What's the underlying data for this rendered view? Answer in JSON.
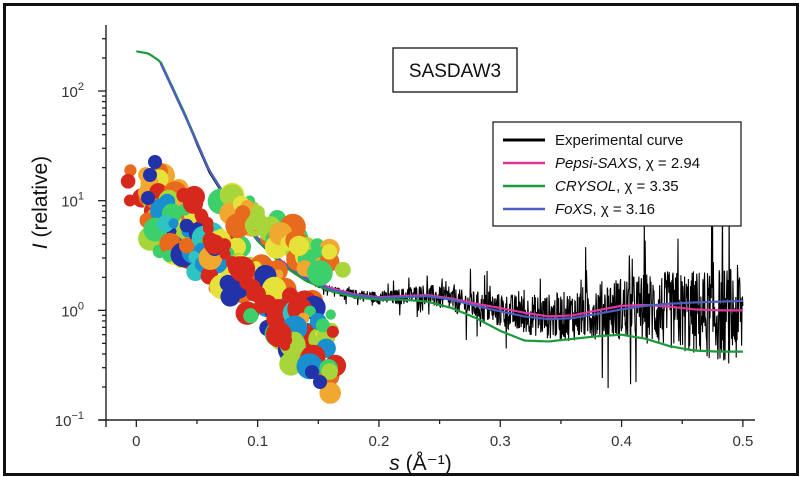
{
  "chart_data": {
    "type": "line",
    "title": "SASDAW3",
    "xlabel": {
      "var": "s",
      "unit": "(Å⁻¹)"
    },
    "ylabel": {
      "var": "I",
      "unit": "(relative)"
    },
    "x_scale": "linear",
    "y_scale": "log",
    "xlim": [
      -0.025,
      0.51
    ],
    "ylim": [
      0.1,
      400
    ],
    "grid": false,
    "legend_position": "top-right",
    "x_ticks": [
      "0",
      "0.1",
      "0.2",
      "0.3",
      "0.4",
      "0.5"
    ],
    "x_tick_values": [
      0,
      0.1,
      0.2,
      0.3,
      0.4,
      0.5
    ],
    "y_ticks": [
      {
        "value": 0.1,
        "base": "10",
        "exp": "−1"
      },
      {
        "value": 1,
        "base": "10",
        "exp": "0"
      },
      {
        "value": 10,
        "base": "10",
        "exp": "1"
      },
      {
        "value": 100,
        "base": "10",
        "exp": "2"
      }
    ],
    "series": [
      {
        "name": "Experimental curve",
        "color": "#000000",
        "noisy": true,
        "x": [
          0.02,
          0.03,
          0.04,
          0.05,
          0.06,
          0.07,
          0.08,
          0.09,
          0.1,
          0.11,
          0.12,
          0.13,
          0.14,
          0.15,
          0.16,
          0.17,
          0.18,
          0.19,
          0.2,
          0.21,
          0.22,
          0.23,
          0.24,
          0.25,
          0.26,
          0.27,
          0.28,
          0.29,
          0.3,
          0.31,
          0.32,
          0.33,
          0.34,
          0.35,
          0.36,
          0.37,
          0.38,
          0.39,
          0.4,
          0.41,
          0.42,
          0.43,
          0.44,
          0.45,
          0.46,
          0.47,
          0.48,
          0.49,
          0.5
        ],
        "y": [
          180,
          110,
          60,
          32,
          18,
          12,
          8.5,
          6.0,
          4.5,
          3.3,
          2.7,
          2.3,
          2.0,
          1.7,
          1.55,
          1.45,
          1.4,
          1.35,
          1.3,
          1.3,
          1.35,
          1.4,
          1.4,
          1.3,
          1.25,
          1.15,
          1.1,
          1.05,
          1.0,
          0.95,
          0.92,
          0.9,
          0.88,
          0.88,
          0.9,
          0.95,
          1.0,
          1.02,
          1.05,
          1.05,
          1.05,
          1.02,
          1.0,
          0.97,
          0.95,
          0.93,
          0.92,
          0.9,
          0.9
        ],
        "noise_start": [
          0.1,
          0.02
        ],
        "noise_amp": [
          0.4,
          1.8
        ]
      },
      {
        "name": "Pepsi-SAXS",
        "chi_label": "χ = 2.94",
        "color": "#e0359b",
        "x": [
          0.02,
          0.04,
          0.06,
          0.08,
          0.1,
          0.12,
          0.14,
          0.16,
          0.18,
          0.2,
          0.22,
          0.24,
          0.26,
          0.28,
          0.3,
          0.32,
          0.34,
          0.36,
          0.38,
          0.4,
          0.42,
          0.44,
          0.46,
          0.48,
          0.5
        ],
        "y": [
          180,
          60,
          19,
          8.5,
          4.6,
          2.8,
          2.0,
          1.6,
          1.4,
          1.32,
          1.35,
          1.38,
          1.28,
          1.15,
          1.05,
          0.95,
          0.88,
          0.9,
          1.0,
          1.1,
          1.12,
          1.08,
          1.02,
          1.0,
          1.0
        ]
      },
      {
        "name": "CRYSOL",
        "chi_label": "χ = 3.35",
        "color": "#1a9a3a",
        "x": [
          0.0,
          0.01,
          0.02,
          0.04,
          0.06,
          0.08,
          0.1,
          0.12,
          0.14,
          0.16,
          0.18,
          0.2,
          0.22,
          0.24,
          0.26,
          0.28,
          0.3,
          0.32,
          0.34,
          0.36,
          0.38,
          0.4,
          0.42,
          0.44,
          0.46,
          0.48,
          0.5
        ],
        "y": [
          230,
          220,
          185,
          62,
          19,
          8.2,
          4.3,
          2.6,
          1.85,
          1.5,
          1.32,
          1.25,
          1.25,
          1.2,
          1.05,
          0.85,
          0.65,
          0.53,
          0.52,
          0.55,
          0.58,
          0.6,
          0.55,
          0.47,
          0.43,
          0.42,
          0.42
        ]
      },
      {
        "name": "FoXS",
        "chi_label": "χ = 3.16",
        "color": "#4a5fc0",
        "x": [
          0.02,
          0.04,
          0.06,
          0.08,
          0.1,
          0.12,
          0.14,
          0.16,
          0.18,
          0.2,
          0.22,
          0.24,
          0.26,
          0.28,
          0.3,
          0.32,
          0.34,
          0.36,
          0.38,
          0.4,
          0.42,
          0.44,
          0.46,
          0.48,
          0.5
        ],
        "y": [
          180,
          60,
          19,
          8.5,
          4.5,
          2.75,
          1.95,
          1.55,
          1.38,
          1.3,
          1.32,
          1.35,
          1.25,
          1.1,
          0.98,
          0.88,
          0.83,
          0.85,
          0.93,
          1.02,
          1.1,
          1.15,
          1.18,
          1.2,
          1.22
        ]
      }
    ]
  },
  "legend": {
    "entries": [
      {
        "prefix": "Experimental curve",
        "italic": false,
        "suffix": "",
        "color": "#000000"
      },
      {
        "prefix": "Pepsi-SAXS",
        "italic": true,
        "suffix": ", χ = 2.94",
        "color": "#e0359b"
      },
      {
        "prefix": "CRYSOL",
        "italic": true,
        "suffix": ", χ = 3.35",
        "color": "#1a9a3a"
      },
      {
        "prefix": "FoXS",
        "italic": true,
        "suffix": ", χ = 3.16",
        "color": "#4a5fc0"
      }
    ]
  },
  "inset": {
    "semantic": "protein-structure-surface-model",
    "colors": [
      "#2233aa",
      "#1a8fcf",
      "#2ec4c4",
      "#3ccf6a",
      "#a8d63a",
      "#e6e23a",
      "#f0a830",
      "#e86a1c",
      "#d6281c"
    ]
  }
}
